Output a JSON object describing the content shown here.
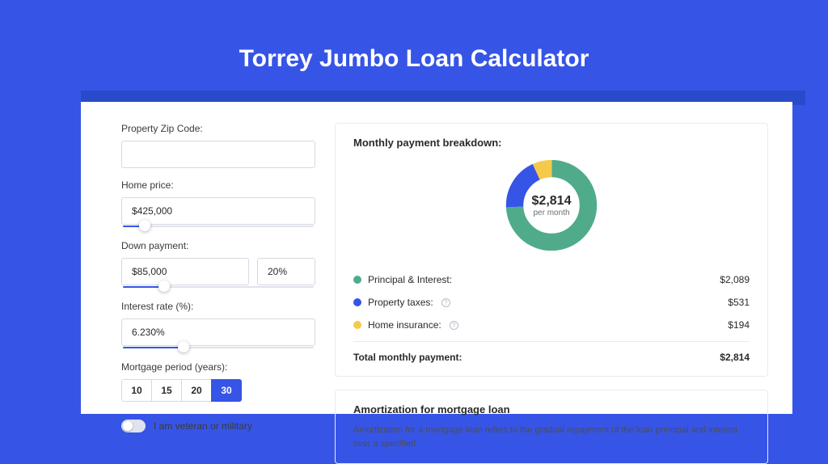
{
  "page_title": "Torrey Jumbo Loan Calculator",
  "colors": {
    "page_bg": "#3655e6",
    "shadow_bar": "#294acb",
    "card_bg": "#ffffff",
    "accent": "#3655e6",
    "border": "#d6d9e2",
    "text": "#2a2a2a"
  },
  "form": {
    "zip": {
      "label": "Property Zip Code:",
      "value": ""
    },
    "price": {
      "label": "Home price:",
      "value": "$425,000",
      "slider_pct": 12
    },
    "down": {
      "label": "Down payment:",
      "value": "$85,000",
      "pct_value": "20%",
      "slider_pct": 22
    },
    "rate": {
      "label": "Interest rate (%):",
      "value": "6.230%",
      "slider_pct": 32
    },
    "period": {
      "label": "Mortgage period (years):",
      "options": [
        "10",
        "15",
        "20",
        "30"
      ],
      "active": "30"
    },
    "veteran": {
      "label": "I am veteran or military",
      "on": false
    }
  },
  "breakdown": {
    "title": "Monthly payment breakdown:",
    "donut": {
      "amount": "$2,814",
      "sub": "per month",
      "segments": [
        {
          "key": "principal",
          "color": "#50ab8b",
          "pct": 74.2
        },
        {
          "key": "taxes",
          "color": "#3655e6",
          "pct": 18.9
        },
        {
          "key": "insurance",
          "color": "#f5c94a",
          "pct": 6.9
        }
      ]
    },
    "rows": [
      {
        "name": "principal",
        "label": "Principal & Interest:",
        "color": "#50ab8b",
        "value": "$2,089",
        "info": false
      },
      {
        "name": "taxes",
        "label": "Property taxes:",
        "color": "#3655e6",
        "value": "$531",
        "info": true
      },
      {
        "name": "insurance",
        "label": "Home insurance:",
        "color": "#f5c94a",
        "value": "$194",
        "info": true
      }
    ],
    "total": {
      "label": "Total monthly payment:",
      "value": "$2,814"
    }
  },
  "amortization": {
    "title": "Amortization for mortgage loan",
    "text": "Amortization for a mortgage loan refers to the gradual repayment of the loan principal and interest over a specified"
  }
}
